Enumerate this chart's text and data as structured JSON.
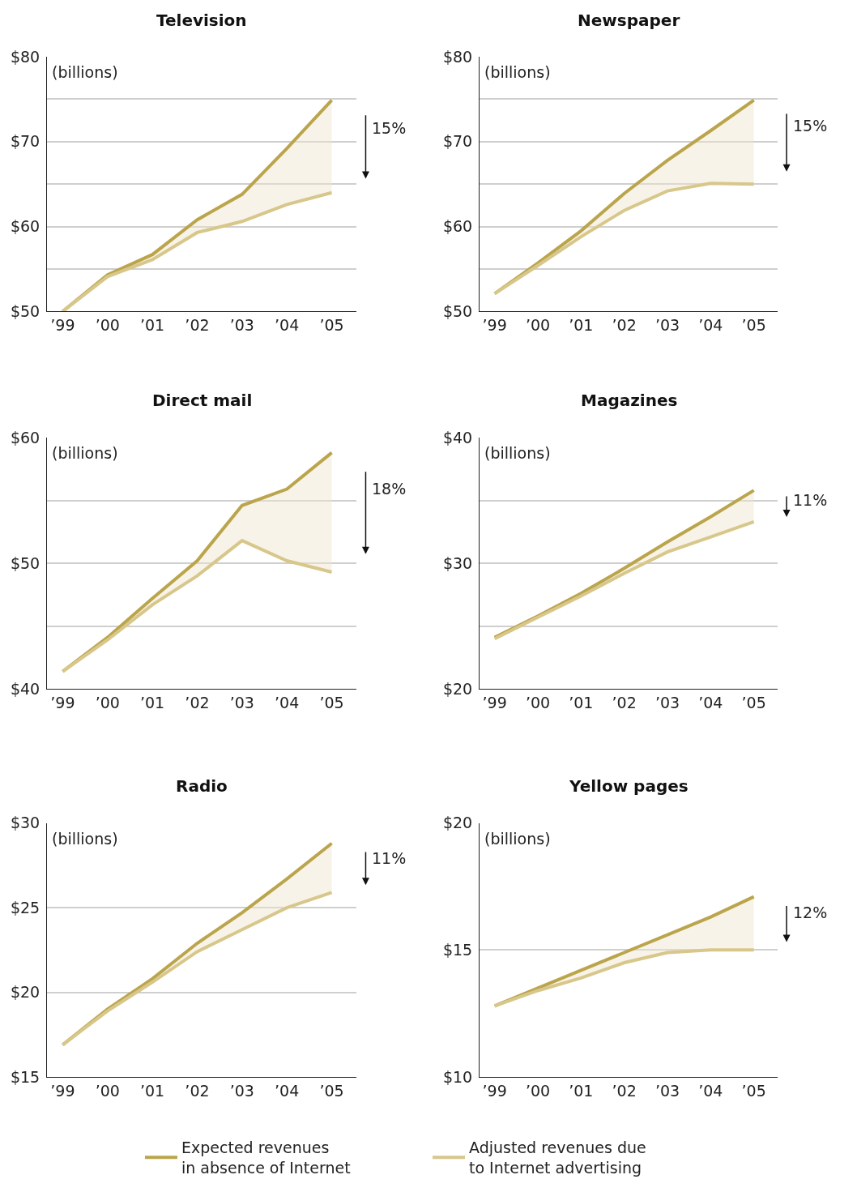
{
  "chart_data": [
    {
      "type": "line",
      "title": "Television",
      "ylabel": "(billions)",
      "categories": [
        "’99",
        "’00",
        "’01",
        "’02",
        "’03",
        "’04",
        "’05"
      ],
      "ylim": [
        50,
        80
      ],
      "yticks": [
        {
          "value": 50,
          "label": "$50"
        },
        {
          "value": 55,
          "label": null
        },
        {
          "value": 60,
          "label": "$60"
        },
        {
          "value": 65,
          "label": null
        },
        {
          "value": 70,
          "label": "$70"
        },
        {
          "value": 75,
          "label": null
        },
        {
          "value": 80,
          "label": "$80"
        }
      ],
      "grid": "y",
      "annotations": [
        "15%"
      ],
      "series": [
        {
          "color": "#bba54c",
          "values": [
            50,
            54.3,
            56.7,
            60.8,
            63.8,
            69.2,
            74.9
          ],
          "lower": [
            50,
            54.1,
            56.1,
            59.3,
            60.6,
            62.6,
            64.0
          ],
          "upper": [
            50,
            54.3,
            56.7,
            60.8,
            63.8,
            69.2,
            74.9
          ]
        },
        {
          "color": "#d8c78b",
          "values": [
            50,
            54.1,
            56.1,
            59.3,
            60.6,
            62.6,
            64.0
          ]
        }
      ]
    },
    {
      "type": "line",
      "title": "Newspaper",
      "ylabel": "(billions)",
      "categories": [
        "’99",
        "’00",
        "’01",
        "’02",
        "’03",
        "’04",
        "’05"
      ],
      "ylim": [
        50,
        80
      ],
      "yticks": [
        {
          "value": 50,
          "label": "$50"
        },
        {
          "value": 55,
          "label": null
        },
        {
          "value": 60,
          "label": "$60"
        },
        {
          "value": 65,
          "label": null
        },
        {
          "value": 70,
          "label": "$70"
        },
        {
          "value": 75,
          "label": null
        },
        {
          "value": 80,
          "label": "$80"
        }
      ],
      "grid": "y",
      "annotations": [
        "15%"
      ],
      "series": [
        {
          "color": "#bba54c",
          "values": [
            52.1,
            55.7,
            59.5,
            63.9,
            67.8,
            71.3,
            74.9
          ],
          "lower": [
            52.1,
            55.4,
            58.8,
            61.9,
            64.2,
            65.1,
            65.0
          ],
          "upper": [
            52.1,
            55.7,
            59.5,
            63.9,
            67.8,
            71.3,
            74.9
          ]
        },
        {
          "color": "#d8c78b",
          "values": [
            52.1,
            55.4,
            58.8,
            61.9,
            64.2,
            65.1,
            65.0
          ]
        }
      ]
    },
    {
      "type": "line",
      "title": "Direct mail",
      "ylabel": "(billions)",
      "categories": [
        "’99",
        "’00",
        "’01",
        "’02",
        "’03",
        "’04",
        "’05"
      ],
      "ylim": [
        40,
        60
      ],
      "yticks": [
        {
          "value": 40,
          "label": "$40"
        },
        {
          "value": 45,
          "label": null
        },
        {
          "value": 50,
          "label": "$50"
        },
        {
          "value": 55,
          "label": null
        },
        {
          "value": 60,
          "label": "$60"
        }
      ],
      "grid": "y",
      "annotations": [
        "18%"
      ],
      "series": [
        {
          "color": "#bba54c",
          "values": [
            41.4,
            44.1,
            47.2,
            50.2,
            54.6,
            55.9,
            58.8
          ],
          "lower": [
            41.4,
            43.9,
            46.7,
            49.0,
            51.8,
            50.2,
            49.3
          ],
          "upper": [
            41.4,
            44.1,
            47.2,
            50.2,
            54.6,
            55.9,
            58.8
          ]
        },
        {
          "color": "#d8c78b",
          "values": [
            41.4,
            43.9,
            46.7,
            49.0,
            51.8,
            50.2,
            49.3
          ]
        }
      ]
    },
    {
      "type": "line",
      "title": "Magazines",
      "ylabel": "(billions)",
      "categories": [
        "’99",
        "’00",
        "’01",
        "’02",
        "’03",
        "’04",
        "’05"
      ],
      "ylim": [
        20,
        40
      ],
      "yticks": [
        {
          "value": 20,
          "label": "$20"
        },
        {
          "value": 25,
          "label": null
        },
        {
          "value": 30,
          "label": "$30"
        },
        {
          "value": 35,
          "label": null
        },
        {
          "value": 40,
          "label": "$40"
        }
      ],
      "grid": "y",
      "annotations": [
        "11%"
      ],
      "series": [
        {
          "color": "#bba54c",
          "values": [
            24.1,
            25.8,
            27.6,
            29.6,
            31.7,
            33.7,
            35.8
          ],
          "lower": [
            24.0,
            25.7,
            27.4,
            29.2,
            30.9,
            32.1,
            33.3
          ],
          "upper": [
            24.1,
            25.8,
            27.6,
            29.6,
            31.7,
            33.7,
            35.8
          ]
        },
        {
          "color": "#d8c78b",
          "values": [
            24.0,
            25.7,
            27.4,
            29.2,
            30.9,
            32.1,
            33.3
          ]
        }
      ]
    },
    {
      "type": "line",
      "title": "Radio",
      "ylabel": "(billions)",
      "categories": [
        "’99",
        "’00",
        "’01",
        "’02",
        "’03",
        "’04",
        "’05"
      ],
      "ylim": [
        15,
        30
      ],
      "yticks": [
        {
          "value": 15,
          "label": "$15"
        },
        {
          "value": 20,
          "label": "$20"
        },
        {
          "value": 25,
          "label": "$25"
        },
        {
          "value": 30,
          "label": "$30"
        }
      ],
      "grid": "y",
      "annotations": [
        "11%"
      ],
      "series": [
        {
          "color": "#bba54c",
          "values": [
            16.9,
            19.0,
            20.8,
            22.9,
            24.7,
            26.7,
            28.8
          ],
          "lower": [
            16.9,
            18.9,
            20.6,
            22.4,
            23.7,
            25.0,
            25.9
          ],
          "upper": [
            16.9,
            19.0,
            20.8,
            22.9,
            24.7,
            26.7,
            28.8
          ]
        },
        {
          "color": "#d8c78b",
          "values": [
            16.9,
            18.9,
            20.6,
            22.4,
            23.7,
            25.0,
            25.9
          ]
        }
      ]
    },
    {
      "type": "line",
      "title": "Yellow pages",
      "ylabel": "(billions)",
      "categories": [
        "’99",
        "’00",
        "’01",
        "’02",
        "’03",
        "’04",
        "’05"
      ],
      "ylim": [
        10,
        20
      ],
      "yticks": [
        {
          "value": 10,
          "label": "$10"
        },
        {
          "value": 15,
          "label": "$15"
        },
        {
          "value": 20,
          "label": "$20"
        }
      ],
      "grid": "y",
      "annotations": [
        "12%"
      ],
      "legend": "bottom",
      "series": [
        {
          "name": "Expected revenues\nin absence of Internet",
          "color": "#bba54c",
          "values": [
            12.8,
            13.5,
            14.2,
            14.9,
            15.6,
            16.3,
            17.1
          ],
          "lower": [
            12.8,
            13.4,
            13.9,
            14.5,
            14.9,
            15.0,
            15.0
          ],
          "upper": [
            12.8,
            13.5,
            14.2,
            14.9,
            15.6,
            16.3,
            17.1
          ]
        },
        {
          "name": "Adjusted revenues due\nto Internet advertising",
          "color": "#d8c78b",
          "values": [
            12.8,
            13.4,
            13.9,
            14.5,
            14.9,
            15.0,
            15.0
          ]
        }
      ]
    }
  ]
}
